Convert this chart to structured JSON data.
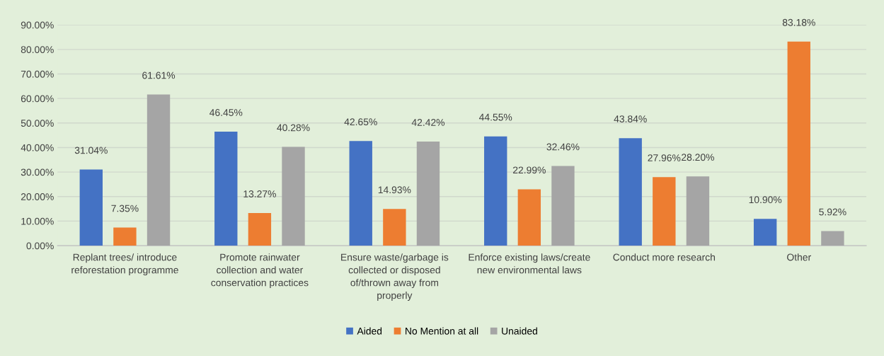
{
  "chart_data": {
    "type": "bar",
    "categories": [
      "Replant trees/ introduce\nreforestation programme",
      "Promote rainwater\ncollection and water\nconservation practices",
      "Ensure waste/garbage is\ncollected or disposed\nof/thrown away from\nproperly",
      "Enforce existing laws/create\nnew environmental laws",
      "Conduct more research",
      "Other"
    ],
    "series": [
      {
        "name": "Aided",
        "color": "#4472c4",
        "values": [
          31.04,
          46.45,
          42.65,
          44.55,
          43.84,
          10.9
        ],
        "value_labels": [
          "31.04%",
          "46.45%",
          "42.65%",
          "44.55%",
          "43.84%",
          "10.90%"
        ]
      },
      {
        "name": "No Mention at all",
        "color": "#ed7d31",
        "values": [
          7.35,
          13.27,
          14.93,
          22.99,
          27.96,
          83.18
        ],
        "value_labels": [
          "7.35%",
          "13.27%",
          "14.93%",
          "22.99%",
          "27.96%",
          "83.18%"
        ]
      },
      {
        "name": "Unaided",
        "color": "#a5a5a5",
        "values": [
          61.61,
          40.28,
          42.42,
          32.46,
          28.2,
          5.92
        ],
        "value_labels": [
          "61.61%",
          "40.28%",
          "42.42%",
          "32.46%",
          "28.20%",
          "5.92%"
        ]
      }
    ],
    "ylim": [
      0,
      90
    ],
    "yticks": [
      {
        "value": 0,
        "label": "0.00%"
      },
      {
        "value": 10,
        "label": "10.00%"
      },
      {
        "value": 20,
        "label": "20.00%"
      },
      {
        "value": 30,
        "label": "30.00%"
      },
      {
        "value": 40,
        "label": "40.00%"
      },
      {
        "value": 50,
        "label": "50.00%"
      },
      {
        "value": 60,
        "label": "60.00%"
      },
      {
        "value": 70,
        "label": "70.00%"
      },
      {
        "value": 80,
        "label": "80.00%"
      },
      {
        "value": 90,
        "label": "90.00%"
      }
    ],
    "grid": "y",
    "legend": "bottom"
  }
}
